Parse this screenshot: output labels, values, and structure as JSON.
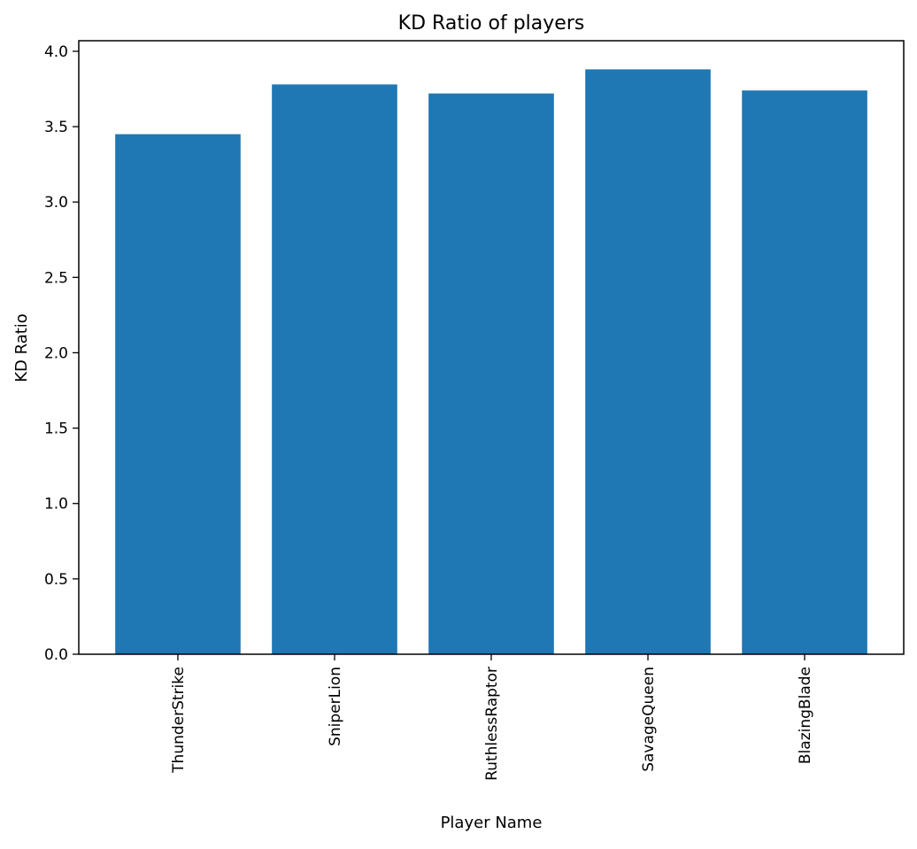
{
  "chart_data": {
    "type": "bar",
    "title": "KD Ratio of players",
    "xlabel": "Player Name",
    "ylabel": "KD Ratio",
    "categories": [
      "ThunderStrike",
      "SniperLion",
      "RuthlessRaptor",
      "SavageQueen",
      "BlazingBlade"
    ],
    "values": [
      3.45,
      3.78,
      3.72,
      3.88,
      3.74
    ],
    "ylim": [
      0,
      4.07
    ],
    "yticks": [
      "0.0",
      "0.5",
      "1.0",
      "1.5",
      "2.0",
      "2.5",
      "3.0",
      "3.5",
      "4.0"
    ],
    "grid": false,
    "colors": {
      "bar": "#1f77b4",
      "axis": "#000000"
    }
  }
}
